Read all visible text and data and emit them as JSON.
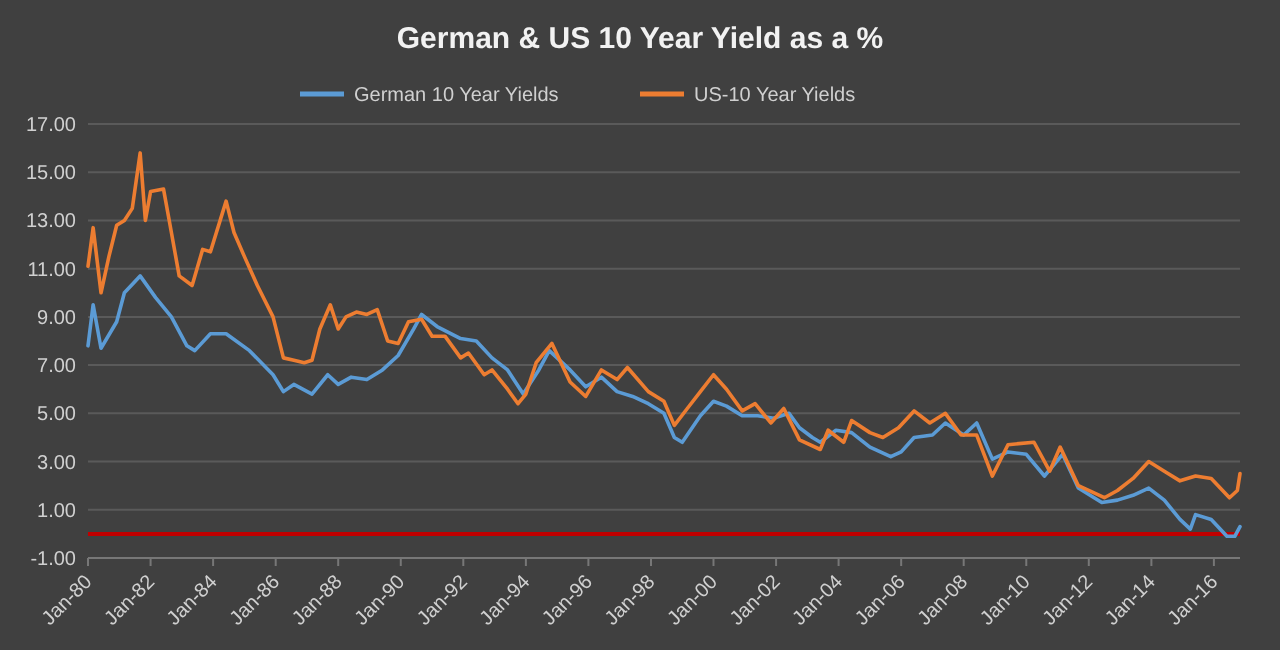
{
  "chart_data": {
    "type": "line",
    "title": "German &  US 10 Year Yield as a %",
    "x": [
      "1980-01",
      "1980-03",
      "1980-06",
      "1980-09",
      "1980-12",
      "1981-03",
      "1981-06",
      "1981-09",
      "1981-11",
      "1982-01",
      "1982-06",
      "1982-09",
      "1982-12",
      "1983-05",
      "1983-09",
      "1983-12",
      "1984-06",
      "1984-09",
      "1985-01",
      "1985-06",
      "1985-12",
      "1986-04",
      "1986-08",
      "1986-12",
      "1987-03",
      "1987-06",
      "1987-10",
      "1988-01",
      "1988-04",
      "1988-08",
      "1988-12",
      "1989-04",
      "1989-08",
      "1989-12",
      "1990-04",
      "1990-09",
      "1991-01",
      "1991-06",
      "1991-12",
      "1992-03",
      "1992-09",
      "1992-12",
      "1993-06",
      "1993-10",
      "1994-01",
      "1994-05",
      "1994-11",
      "1995-06",
      "1995-12",
      "1996-06",
      "1996-12",
      "1997-04",
      "1997-12",
      "1998-06",
      "1998-10",
      "1999-03",
      "1999-08",
      "2000-01",
      "2000-06",
      "2000-12",
      "2001-05",
      "2001-11",
      "2002-04",
      "2002-10",
      "2003-06",
      "2003-09",
      "2004-03",
      "2004-06",
      "2005-01",
      "2005-06",
      "2005-12",
      "2006-06",
      "2006-12",
      "2007-06",
      "2007-12",
      "2008-06",
      "2008-12",
      "2009-06",
      "2010-04",
      "2010-10",
      "2011-02",
      "2011-09",
      "2012-07",
      "2012-12",
      "2013-06",
      "2013-12",
      "2014-06",
      "2014-12",
      "2015-06",
      "2015-12",
      "2016-07",
      "2016-10",
      "2016-11"
    ],
    "series": [
      {
        "name": "German 10 Year Yields",
        "color": "#5b9bd5",
        "x": [
          "1980-01",
          "1980-03",
          "1980-06",
          "1980-12",
          "1981-03",
          "1981-09",
          "1982-03",
          "1982-09",
          "1983-03",
          "1983-06",
          "1983-12",
          "1984-06",
          "1985-03",
          "1985-12",
          "1986-04",
          "1986-08",
          "1987-03",
          "1987-09",
          "1988-01",
          "1988-06",
          "1988-12",
          "1989-06",
          "1989-12",
          "1990-06",
          "1990-09",
          "1991-03",
          "1991-12",
          "1992-06",
          "1992-12",
          "1993-06",
          "1993-12",
          "1994-06",
          "1994-10",
          "1995-06",
          "1995-12",
          "1996-06",
          "1996-12",
          "1997-06",
          "1997-12",
          "1998-06",
          "1998-10",
          "1999-01",
          "1999-08",
          "2000-01",
          "2000-06",
          "2000-12",
          "2001-06",
          "2001-12",
          "2002-06",
          "2002-10",
          "2003-03",
          "2003-06",
          "2003-12",
          "2004-06",
          "2005-01",
          "2005-09",
          "2006-01",
          "2006-06",
          "2007-01",
          "2007-06",
          "2008-01",
          "2008-06",
          "2008-12",
          "2009-06",
          "2010-01",
          "2010-08",
          "2011-03",
          "2011-09",
          "2012-06",
          "2012-12",
          "2013-06",
          "2013-12",
          "2014-06",
          "2014-12",
          "2015-04",
          "2015-06",
          "2015-12",
          "2016-06",
          "2016-09",
          "2016-11"
        ],
        "values": [
          7.8,
          9.5,
          7.7,
          8.8,
          10.0,
          10.7,
          9.8,
          9.0,
          7.8,
          7.6,
          8.3,
          8.3,
          7.6,
          6.6,
          5.9,
          6.2,
          5.8,
          6.6,
          6.2,
          6.5,
          6.4,
          6.8,
          7.4,
          8.5,
          9.1,
          8.6,
          8.1,
          8.0,
          7.3,
          6.8,
          5.8,
          6.8,
          7.6,
          6.8,
          6.1,
          6.5,
          5.9,
          5.7,
          5.4,
          5.0,
          4.0,
          3.8,
          4.9,
          5.5,
          5.3,
          4.9,
          4.9,
          4.8,
          5.0,
          4.4,
          4.0,
          3.8,
          4.3,
          4.2,
          3.6,
          3.2,
          3.4,
          4.0,
          4.1,
          4.6,
          4.1,
          4.6,
          3.1,
          3.4,
          3.3,
          2.4,
          3.3,
          1.9,
          1.3,
          1.4,
          1.6,
          1.9,
          1.4,
          0.6,
          0.2,
          0.8,
          0.6,
          -0.1,
          -0.1,
          0.3
        ]
      },
      {
        "name": "US-10 Year Yields",
        "color": "#ed7d31",
        "values": [
          11.1,
          12.7,
          10.0,
          11.5,
          12.8,
          13.0,
          13.5,
          15.8,
          13.0,
          14.2,
          14.3,
          12.5,
          10.7,
          10.3,
          11.8,
          11.7,
          13.8,
          12.5,
          11.5,
          10.3,
          9.0,
          7.3,
          7.2,
          7.1,
          7.2,
          8.5,
          9.5,
          8.5,
          9.0,
          9.2,
          9.1,
          9.3,
          8.0,
          7.9,
          8.8,
          8.9,
          8.2,
          8.2,
          7.3,
          7.5,
          6.6,
          6.8,
          6.0,
          5.4,
          5.8,
          7.1,
          7.9,
          6.3,
          5.7,
          6.8,
          6.4,
          6.9,
          5.9,
          5.5,
          4.5,
          5.2,
          5.9,
          6.6,
          6.0,
          5.1,
          5.4,
          4.6,
          5.2,
          3.9,
          3.5,
          4.3,
          3.8,
          4.7,
          4.2,
          4.0,
          4.4,
          5.1,
          4.6,
          5.0,
          4.1,
          4.1,
          2.4,
          3.7,
          3.8,
          2.6,
          3.6,
          2.0,
          1.5,
          1.8,
          2.3,
          3.0,
          2.6,
          2.2,
          2.4,
          2.3,
          1.5,
          1.8,
          2.5
        ]
      }
    ],
    "xlim": [
      "1980-01",
      "2016-11"
    ],
    "xticks": [
      {
        "value": "1980-01",
        "label": "Jan-80"
      },
      {
        "value": "1982-01",
        "label": "Jan-82"
      },
      {
        "value": "1984-01",
        "label": "Jan-84"
      },
      {
        "value": "1986-01",
        "label": "Jan-86"
      },
      {
        "value": "1988-01",
        "label": "Jan-88"
      },
      {
        "value": "1990-01",
        "label": "Jan-90"
      },
      {
        "value": "1992-01",
        "label": "Jan-92"
      },
      {
        "value": "1994-01",
        "label": "Jan-94"
      },
      {
        "value": "1996-01",
        "label": "Jan-96"
      },
      {
        "value": "1998-01",
        "label": "Jan-98"
      },
      {
        "value": "2000-01",
        "label": "Jan-00"
      },
      {
        "value": "2002-01",
        "label": "Jan-02"
      },
      {
        "value": "2004-01",
        "label": "Jan-04"
      },
      {
        "value": "2006-01",
        "label": "Jan-06"
      },
      {
        "value": "2008-01",
        "label": "Jan-08"
      },
      {
        "value": "2010-01",
        "label": "Jan-10"
      },
      {
        "value": "2012-01",
        "label": "Jan-12"
      },
      {
        "value": "2014-01",
        "label": "Jan-14"
      },
      {
        "value": "2016-01",
        "label": "Jan-16"
      }
    ],
    "ylim": [
      -1,
      17
    ],
    "yticks": [
      {
        "value": -1,
        "label": "-1.00"
      },
      {
        "value": 1,
        "label": "1.00"
      },
      {
        "value": 3,
        "label": "3.00"
      },
      {
        "value": 5,
        "label": "5.00"
      },
      {
        "value": 7,
        "label": "7.00"
      },
      {
        "value": 9,
        "label": "9.00"
      },
      {
        "value": 11,
        "label": "11.00"
      },
      {
        "value": 13,
        "label": "13.00"
      },
      {
        "value": 15,
        "label": "15.00"
      },
      {
        "value": 17,
        "label": "17.00"
      }
    ],
    "ref_lines": [
      {
        "axis": "y",
        "value": 0,
        "color": "#c00000"
      }
    ],
    "grid": "y",
    "legend": "top"
  }
}
